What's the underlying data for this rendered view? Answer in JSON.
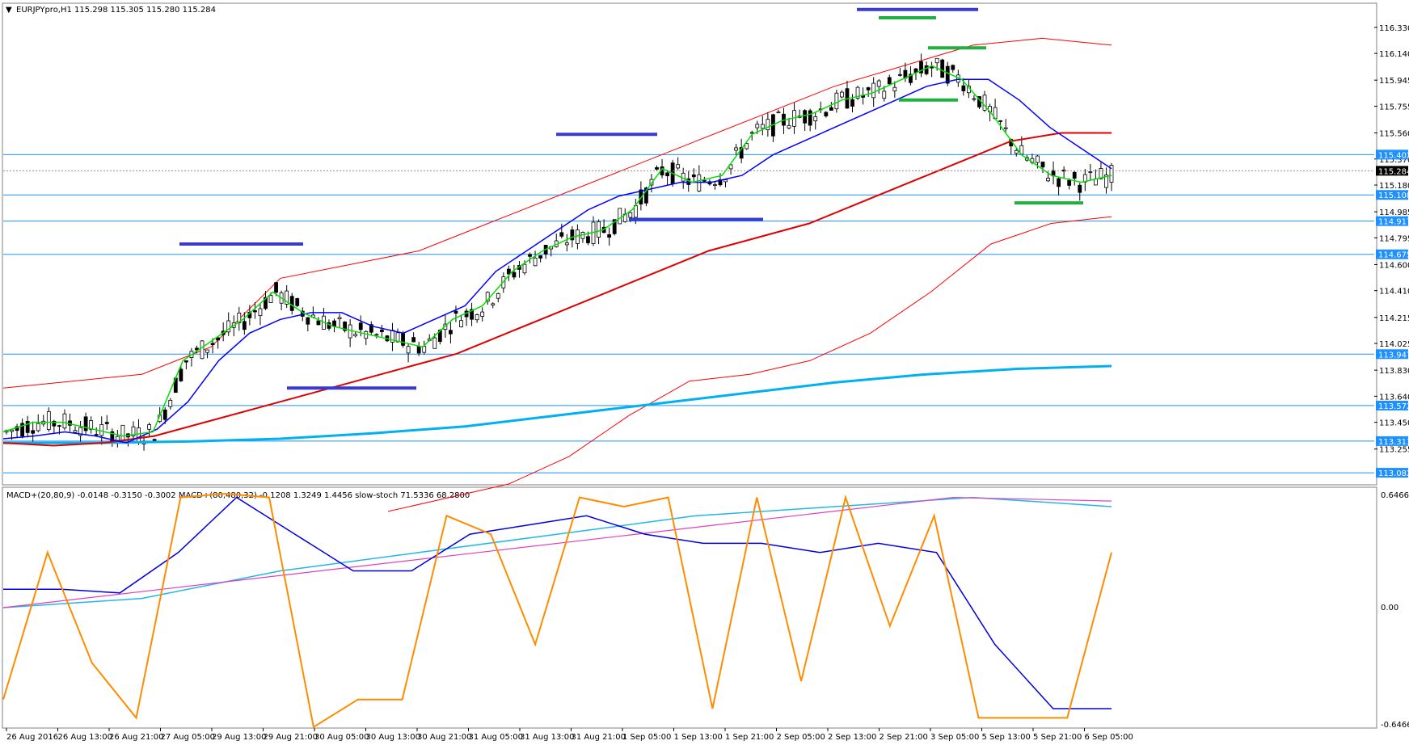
{
  "window": {
    "symbol_header": "EURJPYpro,H1",
    "ohlc_header": "115.298 115.305 115.280 115.284",
    "indicator_header": "MACD+(20,80,9) -0.0148 -0.3150 -0.3002   MACD+(80,480,32) -0.1208 1.3249 1.4456   slow-stoch 71.5336 68.2800"
  },
  "colors": {
    "background": "#ffffff",
    "frame": "#808080",
    "candle_bull_body": "#ffffff",
    "candle_bear_body": "#000000",
    "ma_fast": "#00e000",
    "ma_mid": "#0000ff",
    "ma_slow": "#e00000",
    "ma_long": "#00b0f0",
    "band": "#ff0000",
    "level_line": "#1e90ff",
    "level_tag": "#1e90ff",
    "marker_blue": "#3a3acc",
    "marker_green": "#20b040",
    "stoch": "#ff8c00",
    "stoch_signal": "#ff3030",
    "macd1": "#0000e0",
    "macd1_signal": "#ff2020",
    "macd2": "#20b8e8",
    "macd2_signal": "#e040c0"
  },
  "chart_data": [
    {
      "type": "candlestick",
      "title": "EURJPYpro,H1",
      "ylim": [
        113.0,
        116.5
      ],
      "current_price": "115.284",
      "price_axis_ticks": [
        "116.330",
        "116.140",
        "115.945",
        "115.755",
        "115.560",
        "115.370",
        "115.180",
        "114.985",
        "114.795",
        "114.600",
        "114.410",
        "114.215",
        "114.025",
        "113.830",
        "113.640",
        "113.450",
        "113.255"
      ],
      "horizontal_levels": [
        "115.402",
        "115.108",
        "114.917",
        "114.675",
        "113.947",
        "113.572",
        "113.313",
        "113.082"
      ],
      "time_axis_labels": [
        "26 Aug 2016",
        "26 Aug 13:00",
        "26 Aug 21:00",
        "27 Aug 05:00",
        "29 Aug 13:00",
        "29 Aug 21:00",
        "30 Aug 05:00",
        "30 Aug 13:00",
        "30 Aug 21:00",
        "31 Aug 05:00",
        "31 Aug 13:00",
        "31 Aug 21:00",
        "1 Sep 05:00",
        "1 Sep 13:00",
        "1 Sep 21:00",
        "2 Sep 05:00",
        "2 Sep 13:00",
        "2 Sep 21:00",
        "3 Sep 05:00",
        "5 Sep 13:00",
        "5 Sep 21:00",
        "6 Sep 05:00"
      ],
      "series": {
        "ma_fast": [
          113.38,
          113.45,
          113.45,
          113.4,
          113.35,
          113.38,
          113.9,
          114.05,
          114.2,
          114.4,
          114.25,
          114.15,
          114.1,
          114.05,
          114.0,
          114.2,
          114.3,
          114.55,
          114.7,
          114.8,
          114.85,
          115.0,
          115.3,
          115.2,
          115.25,
          115.55,
          115.65,
          115.7,
          115.8,
          115.85,
          115.95,
          116.05,
          115.95,
          115.7,
          115.4,
          115.25,
          115.2,
          115.25
        ],
        "ma_mid": [
          113.33,
          113.35,
          113.38,
          113.35,
          113.3,
          113.4,
          113.6,
          113.9,
          114.1,
          114.2,
          114.25,
          114.25,
          114.15,
          114.1,
          114.2,
          114.3,
          114.55,
          114.7,
          114.85,
          115.0,
          115.1,
          115.15,
          115.2,
          115.2,
          115.25,
          115.4,
          115.5,
          115.6,
          115.7,
          115.8,
          115.9,
          115.95,
          115.95,
          115.8,
          115.6,
          115.45,
          115.3
        ],
        "ma_slow": [
          113.3,
          113.28,
          113.3,
          113.35,
          113.45,
          113.55,
          113.65,
          113.75,
          113.85,
          113.95,
          114.1,
          114.25,
          114.4,
          114.55,
          114.7,
          114.8,
          114.9,
          115.05,
          115.2,
          115.35,
          115.5,
          115.56,
          115.56
        ],
        "ma_long": [
          113.3,
          113.3,
          113.31,
          113.33,
          113.37,
          113.42,
          113.5,
          113.58,
          113.66,
          113.74,
          113.8,
          113.84,
          113.86
        ],
        "band_upper": [
          113.7,
          113.75,
          113.8,
          114.0,
          114.5,
          114.6,
          114.7,
          114.9,
          115.1,
          115.3,
          115.5,
          115.7,
          115.9,
          116.05,
          116.2,
          116.25,
          116.2
        ],
        "band_lower": [
          112.8,
          112.9,
          113.0,
          113.2,
          113.5,
          113.75,
          113.8,
          113.9,
          114.1,
          114.4,
          114.75,
          114.9,
          114.95
        ]
      }
    },
    {
      "type": "line",
      "title": "MACD+ / slow-stoch",
      "ylim": [
        -0.6466,
        0.6466
      ],
      "axis_ticks": [
        "0.6466",
        "0.00",
        "-0.6466"
      ],
      "series": {
        "stoch": [
          -0.5,
          0.3,
          -0.3,
          -0.6,
          0.6,
          0.62,
          0.6,
          -0.65,
          -0.5,
          -0.5,
          0.5,
          0.4,
          -0.2,
          0.6,
          0.55,
          0.6,
          -0.55,
          0.6,
          -0.4,
          0.6,
          -0.1,
          0.5,
          -0.6,
          -0.6,
          -0.6,
          0.3
        ],
        "macd1": [
          0.1,
          0.1,
          0.08,
          0.3,
          0.6,
          0.4,
          0.2,
          0.2,
          0.4,
          0.45,
          0.5,
          0.4,
          0.35,
          0.35,
          0.3,
          0.35,
          0.3,
          -0.2,
          -0.55,
          -0.55
        ],
        "macd2": [
          0.0,
          0.05,
          0.2,
          0.3,
          0.4,
          0.5,
          0.55,
          0.6,
          0.55
        ],
        "macd2_signal": [
          0.0,
          0.1,
          0.2,
          0.3,
          0.4,
          0.5,
          0.6,
          0.58
        ]
      }
    }
  ]
}
